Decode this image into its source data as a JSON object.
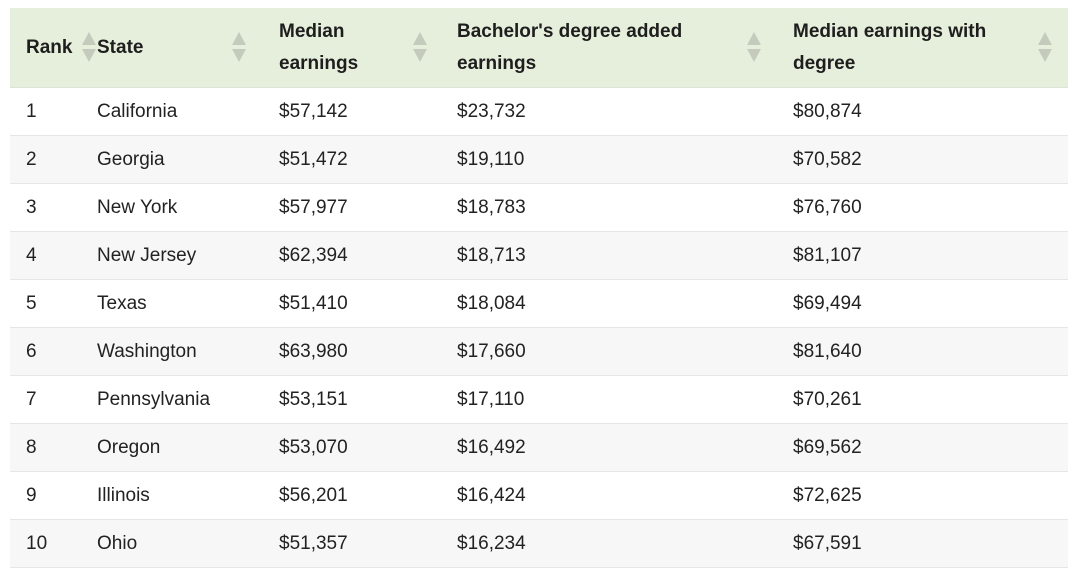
{
  "table": {
    "header_bg": "#e6efdc",
    "columns": [
      {
        "label": "Rank"
      },
      {
        "label": "State"
      },
      {
        "label": "Median earnings"
      },
      {
        "label": "Bachelor's degree added earnings"
      },
      {
        "label": "Median earnings with degree"
      }
    ],
    "rows": [
      [
        "1",
        "California",
        "$57,142",
        "$23,732",
        "$80,874"
      ],
      [
        "2",
        "Georgia",
        "$51,472",
        "$19,110",
        "$70,582"
      ],
      [
        "3",
        "New York",
        "$57,977",
        "$18,783",
        "$76,760"
      ],
      [
        "4",
        "New Jersey",
        "$62,394",
        "$18,713",
        "$81,107"
      ],
      [
        "5",
        "Texas",
        "$51,410",
        "$18,084",
        "$69,494"
      ],
      [
        "6",
        "Washington",
        "$63,980",
        "$17,660",
        "$81,640"
      ],
      [
        "7",
        "Pennsylvania",
        "$53,151",
        "$17,110",
        "$70,261"
      ],
      [
        "8",
        "Oregon",
        "$53,070",
        "$16,492",
        "$69,562"
      ],
      [
        "9",
        "Illinois",
        "$56,201",
        "$16,424",
        "$72,625"
      ],
      [
        "10",
        "Ohio",
        "$51,357",
        "$16,234",
        "$67,591"
      ]
    ]
  }
}
